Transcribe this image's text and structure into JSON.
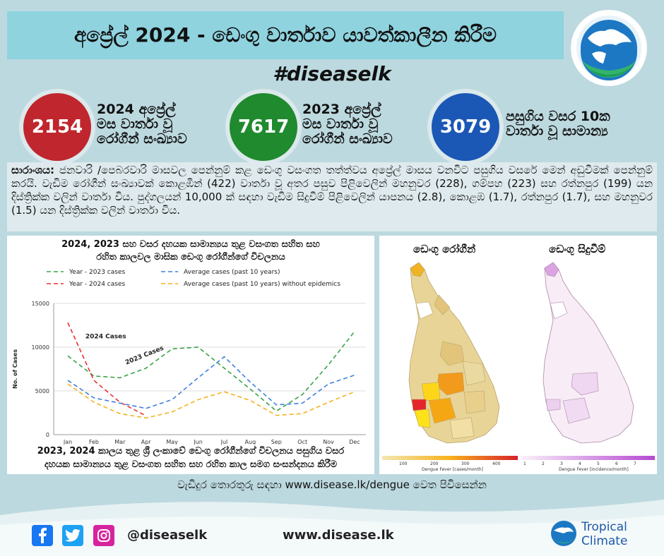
{
  "header": {
    "title": "අප්‍රේල් 2024 - ඩෙංගු වාර්තාව යාවත්කාලීන කිරීම",
    "hashtag": "#diseaselk"
  },
  "stats": [
    {
      "value": "2154",
      "label_lines": [
        "2024 අප්‍රේල්",
        "මස වාර්තා වූ",
        "රෝගීන් සංඛ්‍යාව"
      ],
      "color": "#c0262d"
    },
    {
      "value": "7617",
      "label_lines": [
        "2023 අප්‍රේල්",
        "මස වාර්තා වූ",
        "රෝගීන් සංඛ්‍යාව"
      ],
      "color": "#1f8a2e"
    },
    {
      "value": "3079",
      "label_lines": [
        "පසුගිය වසර 10ක",
        "වාර්තා වූ සාමාන්‍ය"
      ],
      "color": "#1b57b5"
    }
  ],
  "summary": {
    "label": "සාරාංශය:",
    "text": "ජනවාරි /පෙබරවාරි මාසවල පෙන්නුම් කළ ඩෙංගු වසංගත තත්ත්වය අප්‍රේල් මාසය වනවිට පසුගිය වසරේ මෙන් අඩුවීමක් පෙන්නුම් කරයි. වැඩිම රෝගීන් සංඛ්‍යාවක් කොළඹින් (422) වාර්තා වූ අතර පසුව පිළිවෙලින් මහනුවර (228), ගම්පහ (223) සහ රත්නපුර (199) යන දිස්ත්‍රික්ක වලින් වාර්තා විය. පුද්ගලයන් 10,000 ක් සඳහා වැඩිම සිදුවීම් පිළිවෙලින් යාපනය (2.8), කොළඹ (1.7), රත්නපුර (1.7), සහ මහනුවර (1.5) යන දිස්ත්‍රික්ක වලින් වාර්තා විය."
  },
  "chart_data": {
    "type": "line",
    "title": "2024, 2023 සහ වසර දහයක සාමාන්‍යය තුළ වසංගත සහිත සහ රහිත කාලවල මාසික ඩෙංගු රෝගීන්ගේ විචලනය",
    "title_lines": [
      "2024, 2023 සහ වසර දහයක සාමාන්‍යය තුළ වසංගත සහිත සහ",
      "රහිත කාලවල මාසික ඩෙංගු රෝගීන්ගේ විචලනය"
    ],
    "caption_lines": [
      "2023, 2024 කාලය තුළ ශ්‍රී ලංකාවේ ඩෙංගු රෝගීන්ගේ විචලනය පසුගිය වසර",
      "දහයක සාමාන්‍යය තුළ වසංගත සහිත සහ රහිත කාල සමග සංසන්දනය කිරීම"
    ],
    "xlabel": "",
    "ylabel": "No. of Cases",
    "ylim": [
      0,
      15000
    ],
    "yticks": [
      0,
      5000,
      10000,
      15000
    ],
    "grid": true,
    "legend_position": "top",
    "categories": [
      "Jan",
      "Feb",
      "Mar",
      "Apr",
      "May",
      "Jun",
      "Jul",
      "Aug",
      "Sep",
      "Oct",
      "Nov",
      "Dec"
    ],
    "series": [
      {
        "name": "Year - 2023 cases",
        "color": "#3aa34a",
        "values": [
          9000,
          6700,
          6500,
          7600,
          9800,
          10000,
          7600,
          5200,
          2700,
          4600,
          8000,
          11800
        ]
      },
      {
        "name": "Year - 2024 cases",
        "color": "#e8312b",
        "values": [
          12800,
          6200,
          3700,
          2154,
          null,
          null,
          null,
          null,
          null,
          null,
          null,
          null
        ]
      },
      {
        "name": "Average cases (past 10 years)",
        "color": "#3f7fe0",
        "values": [
          6200,
          4200,
          3600,
          3000,
          4000,
          6500,
          8900,
          6000,
          3400,
          3600,
          5800,
          6800
        ]
      },
      {
        "name": "Average cases (past 10 years) without epidemics",
        "color": "#f4b21c",
        "values": [
          5800,
          3700,
          2400,
          1900,
          2600,
          4000,
          4900,
          3900,
          2200,
          2400,
          3700,
          4900
        ]
      }
    ],
    "annotations": [
      "2024 Cases",
      "2023 Cases"
    ]
  },
  "maps": {
    "cases_title": "ඩෙංගු රෝගීන්",
    "incidence_title": "ඩෙංගු සිදුවීම්",
    "cases_legend_label": "Dengue Fever [cases/month]",
    "cases_legend_ticks": [
      "100",
      "200",
      "300",
      "400"
    ],
    "incidence_legend_label": "Dengue Fever [incidence/month]",
    "incidence_legend_ticks": [
      "1",
      "2",
      "3",
      "4",
      "5",
      "6",
      "7"
    ]
  },
  "footer": {
    "more_info": "වැඩිදුර තොරතුරු සඳහා www.disease.lk/dengue වෙත පිවිසෙන්න",
    "handle": "@diseaselk",
    "website": "www.disease.lk",
    "brand_line1": "Tropical",
    "brand_line2": "Climate"
  },
  "colors": {
    "facebook": "#1877f2",
    "twitter": "#1da1f2",
    "instagram": "#d6249f"
  },
  "icons": [
    "globe-logo-icon",
    "facebook-icon",
    "twitter-icon",
    "instagram-icon",
    "tropical-climate-logo-icon"
  ]
}
